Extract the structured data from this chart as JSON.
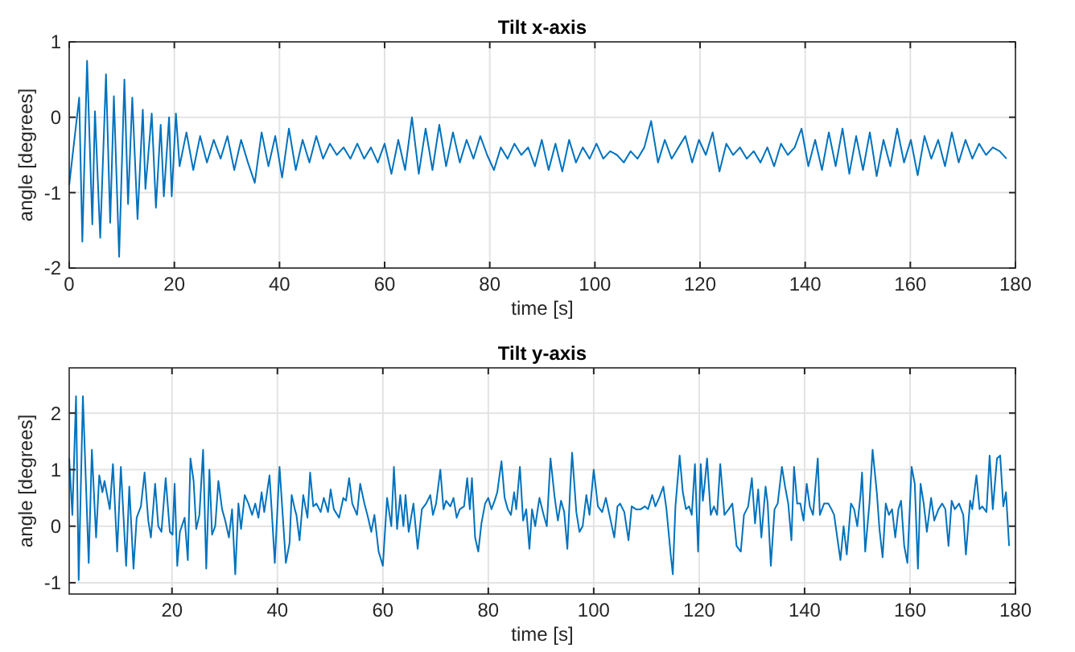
{
  "chart_data": [
    {
      "type": "line",
      "title": "Tilt x-axis",
      "xlabel": "time [s]",
      "ylabel": "angle [degrees]",
      "xlim": [
        0,
        180
      ],
      "ylim": [
        -2,
        1
      ],
      "xticks": [
        0,
        20,
        40,
        60,
        80,
        100,
        120,
        140,
        160,
        180
      ],
      "yticks": [
        -2,
        -1,
        0,
        1
      ],
      "grid": true,
      "x": [
        0,
        1.9,
        2.5,
        3.4,
        4.4,
        4.9,
        5.9,
        7.0,
        7.8,
        8.5,
        9.5,
        10.5,
        11.2,
        12.0,
        13.0,
        14.0,
        14.5,
        15.7,
        16.5,
        17.4,
        18.0,
        19.0,
        19.5,
        20.3,
        21,
        22.3,
        23.6,
        24.9,
        26.2,
        27.5,
        28.8,
        30.1,
        31.4,
        32.7,
        34,
        35.3,
        36.6,
        37.9,
        39.2,
        40.5,
        41.8,
        43.1,
        44.4,
        45.7,
        47,
        48.3,
        49.6,
        50.9,
        52.2,
        53.5,
        54.8,
        56.1,
        57.4,
        58.7,
        60,
        61.3,
        62.6,
        63.9,
        65.2,
        66.5,
        67.8,
        69.1,
        70.4,
        71.7,
        73,
        74.3,
        75.6,
        76.9,
        78.2,
        79.5,
        80.8,
        82.1,
        83.4,
        84.7,
        86,
        87.3,
        88.6,
        89.9,
        91.2,
        92.5,
        93.8,
        95.1,
        96.4,
        97.7,
        99,
        100.3,
        101.6,
        102.9,
        104.2,
        105.5,
        106.8,
        108.1,
        109.4,
        110.7,
        112,
        113.3,
        114.6,
        115.9,
        117.2,
        118.5,
        119.8,
        121.1,
        122.4,
        123.7,
        125,
        126.3,
        127.6,
        128.9,
        130.2,
        131.5,
        132.8,
        134.1,
        135.4,
        136.7,
        138,
        139.3,
        140.6,
        141.9,
        143.2,
        144.5,
        145.8,
        147.1,
        148.4,
        149.7,
        151,
        152.3,
        153.6,
        154.9,
        156.2,
        157.5,
        158.8,
        160.1,
        161.4,
        162.7,
        164,
        165.3,
        166.6,
        167.9,
        169.2,
        170.5,
        171.8,
        173.1,
        174.4,
        175.7,
        177,
        178.3
      ],
      "series": [
        {
          "color": "#0072bd",
          "values": [
            -0.9,
            0.26,
            -1.65,
            0.75,
            -1.42,
            0.08,
            -1.6,
            0.57,
            -1.4,
            0.28,
            -1.85,
            0.5,
            -1.15,
            0.26,
            -1.35,
            0.1,
            -0.95,
            0.05,
            -1.2,
            -0.1,
            -1.05,
            0,
            -1.05,
            0.05,
            -0.65,
            -0.2,
            -0.7,
            -0.25,
            -0.6,
            -0.3,
            -0.55,
            -0.25,
            -0.7,
            -0.3,
            -0.6,
            -0.87,
            -0.2,
            -0.65,
            -0.25,
            -0.8,
            -0.15,
            -0.7,
            -0.3,
            -0.6,
            -0.25,
            -0.55,
            -0.35,
            -0.5,
            -0.4,
            -0.55,
            -0.35,
            -0.55,
            -0.4,
            -0.6,
            -0.35,
            -0.75,
            -0.3,
            -0.7,
            0.0,
            -0.75,
            -0.15,
            -0.7,
            -0.1,
            -0.65,
            -0.2,
            -0.6,
            -0.3,
            -0.55,
            -0.25,
            -0.5,
            -0.7,
            -0.4,
            -0.55,
            -0.35,
            -0.5,
            -0.4,
            -0.65,
            -0.3,
            -0.7,
            -0.35,
            -0.72,
            -0.3,
            -0.6,
            -0.4,
            -0.55,
            -0.35,
            -0.55,
            -0.45,
            -0.5,
            -0.6,
            -0.45,
            -0.55,
            -0.4,
            -0.05,
            -0.6,
            -0.3,
            -0.55,
            -0.4,
            -0.25,
            -0.6,
            -0.3,
            -0.5,
            -0.2,
            -0.72,
            -0.35,
            -0.5,
            -0.4,
            -0.55,
            -0.45,
            -0.6,
            -0.4,
            -0.65,
            -0.35,
            -0.5,
            -0.4,
            -0.15,
            -0.65,
            -0.3,
            -0.7,
            -0.2,
            -0.65,
            -0.15,
            -0.75,
            -0.25,
            -0.7,
            -0.2,
            -0.78,
            -0.3,
            -0.65,
            -0.15,
            -0.6,
            -0.3,
            -0.77,
            -0.25,
            -0.55,
            -0.3,
            -0.65,
            -0.2,
            -0.6,
            -0.3,
            -0.55,
            -0.35,
            -0.5,
            -0.4,
            -0.45,
            -0.55
          ]
        }
      ]
    },
    {
      "type": "line",
      "title": "Tilt y-axis",
      "xlabel": "time [s]",
      "ylabel": "angle [degrees]",
      "xlim": [
        0.5,
        180
      ],
      "ylim": [
        -1.2,
        2.8
      ],
      "xticks": [
        20,
        40,
        60,
        80,
        100,
        120,
        140,
        160,
        180
      ],
      "yticks": [
        -1,
        0,
        1,
        2
      ],
      "grid": true,
      "x": [
        0.5,
        1.1,
        1.8,
        2.3,
        3.1,
        4.2,
        4.8,
        5.6,
        6.2,
        6.8,
        7.2,
        8.2,
        8.8,
        9.6,
        10.3,
        11.3,
        11.9,
        12.7,
        13.3,
        14.1,
        14.8,
        15.5,
        16,
        16.8,
        17.4,
        18,
        18.8,
        19.6,
        20.1,
        20.5,
        21,
        21.5,
        22.4,
        23,
        23.5,
        24.1,
        24.6,
        25.2,
        25.9,
        26.5,
        27.1,
        27.6,
        28.2,
        28.8,
        29.5,
        30.1,
        30.8,
        31.4,
        32,
        32.6,
        33.1,
        33.8,
        34.5,
        35.2,
        35.8,
        36.4,
        37,
        37.5,
        38.5,
        38.9,
        39.5,
        40.4,
        41.6,
        42.3,
        42.7,
        43.3,
        43.6,
        44.2,
        44.9,
        45.7,
        46.2,
        46.8,
        47.4,
        48.2,
        48.8,
        49.6,
        50.1,
        50.7,
        51.7,
        52.5,
        53,
        53.6,
        54.2,
        55.1,
        55.7,
        56.5,
        57.2,
        57.8,
        58.4,
        59.2,
        60,
        60.8,
        61.6,
        62.1,
        62.7,
        63.3,
        63.9,
        64.3,
        64.9,
        65.8,
        66.6,
        67.4,
        68.2,
        69,
        69.5,
        70.1,
        70.9,
        71.5,
        72,
        72.8,
        73.4,
        74,
        74.6,
        75.4,
        76,
        76.5,
        76.9,
        77.5,
        78.1,
        78.7,
        79.4,
        80,
        80.6,
        81.2,
        81.7,
        82.5,
        83.1,
        83.7,
        84.3,
        84.9,
        85.3,
        86,
        86.6,
        87.2,
        87.8,
        88.3,
        88.9,
        89.7,
        90.5,
        91.1,
        91.8,
        92.6,
        93.2,
        93.8,
        94.4,
        95,
        95.5,
        95.9,
        96.7,
        97.3,
        97.9,
        98.6,
        99.2,
        100,
        100.8,
        101.6,
        102.3,
        103.1,
        103.9,
        104.5,
        105,
        105.8,
        106.6,
        107.2,
        108,
        108.9,
        109.7,
        110.3,
        111.1,
        111.7,
        112.4,
        113.2,
        113.8,
        114.6,
        115,
        115.5,
        116.3,
        116.9,
        117.5,
        118.1,
        118.6,
        119.2,
        119.8,
        120.3,
        120.7,
        121,
        121.5,
        122.2,
        122.8,
        123.4,
        124,
        124.8,
        125.6,
        126.3,
        127.1,
        127.9,
        128.5,
        129.3,
        130,
        130.6,
        131.2,
        131.8,
        132.6,
        133,
        133.6,
        134.3,
        134.9,
        135.7,
        136.3,
        136.9,
        137.5,
        138,
        138.6,
        139.2,
        139.8,
        140.4,
        141,
        141.6,
        142.5,
        142.9,
        143.7,
        144.5,
        145.1,
        145.6,
        146.2,
        146.8,
        147.4,
        148,
        148.8,
        149.4,
        150,
        150.6,
        150.9,
        151.5,
        152.3,
        152.9,
        153.7,
        154.2,
        154.8,
        155.4,
        156,
        156.6,
        157.2,
        157.8,
        158.3,
        158.9,
        159.5,
        160.3,
        160.9,
        161.5,
        162,
        162.6,
        163.2,
        164,
        164.6,
        165.4,
        166.1,
        166.7,
        167.3,
        167.9,
        168.5,
        169.3,
        170.1,
        170.6,
        171.4,
        171.8,
        172.6,
        173.2,
        173.7,
        174.5,
        175.1,
        175.7,
        176.5,
        177.1,
        177.7,
        178.2,
        178.8
      ],
      "series": [
        {
          "color": "#0072bd",
          "values": [
            1.2,
            0.2,
            2.3,
            -0.95,
            2.3,
            -0.65,
            1.35,
            -0.2,
            0.9,
            0.6,
            0.8,
            0.3,
            1.1,
            -0.45,
            1.05,
            -0.7,
            0.7,
            -0.75,
            0.15,
            0.35,
            0.95,
            0.1,
            -0.2,
            0.75,
            0,
            -0.1,
            0.85,
            -0.1,
            -0.15,
            0.75,
            -0.7,
            -0.1,
            0.15,
            -0.6,
            1.2,
            0.8,
            -0.05,
            0.2,
            1.35,
            -0.75,
            1.0,
            -0.15,
            0.0,
            0.8,
            0.3,
            0.1,
            -0.2,
            0.3,
            -0.85,
            0.4,
            -0.05,
            0.55,
            0.4,
            0.2,
            0.4,
            0.15,
            0.6,
            0.25,
            0.9,
            0.3,
            -0.65,
            1.05,
            -0.65,
            -0.3,
            0.55,
            0.3,
            0.2,
            -0.25,
            0.55,
            0.15,
            0.95,
            0.35,
            0.4,
            0.25,
            0.5,
            0.25,
            0.65,
            0.3,
            0.15,
            0.5,
            0.45,
            0.85,
            0.4,
            0.2,
            0.75,
            0.4,
            0.15,
            -0.1,
            0.2,
            -0.45,
            -0.7,
            0.5,
            0.0,
            1.05,
            -0.05,
            0.55,
            0.0,
            0.55,
            -0.1,
            0.4,
            -0.4,
            0.3,
            0.4,
            0.55,
            0.2,
            0.4,
            1.0,
            0.3,
            0.45,
            0.35,
            0.5,
            0.15,
            0.3,
            0.35,
            0.85,
            0.3,
            0.85,
            -0.2,
            -0.45,
            0.05,
            0.4,
            0.5,
            0.3,
            0.45,
            0.6,
            1.15,
            0.5,
            0.3,
            0.2,
            0.6,
            0.3,
            1.05,
            0.1,
            0.3,
            -0.4,
            0.3,
            0.0,
            0.5,
            0.2,
            0.0,
            1.2,
            0.5,
            0.1,
            0.45,
            0.25,
            -0.4,
            0.6,
            1.3,
            0.25,
            -0.1,
            0.0,
            0.55,
            0.2,
            1.0,
            0.35,
            0.25,
            0.5,
            0.15,
            -0.2,
            0.35,
            0.4,
            0.25,
            -0.25,
            0.35,
            0.3,
            0.3,
            0.35,
            0.3,
            0.55,
            0.35,
            0.5,
            0.7,
            0.3,
            -0.5,
            -0.85,
            0.35,
            1.25,
            0.6,
            0.3,
            0.35,
            0.2,
            1.1,
            -0.45,
            1.1,
            0.45,
            0.7,
            1.2,
            0.2,
            0.35,
            0.2,
            1.1,
            0.2,
            0.3,
            0.4,
            -0.35,
            -0.45,
            0.2,
            0.35,
            0.85,
            0.05,
            0.65,
            -0.2,
            0.7,
            0.4,
            -0.7,
            0.3,
            0.4,
            1.05,
            0.7,
            0.4,
            -0.25,
            1.05,
            0.4,
            0.4,
            0.1,
            0.75,
            0.35,
            0.2,
            1.2,
            0.2,
            0.4,
            0.4,
            0.3,
            0.2,
            -0.2,
            -0.6,
            0.0,
            -0.5,
            0.4,
            0.3,
            0.0,
            0.55,
            0.95,
            -0.45,
            0.4,
            1.35,
            0.6,
            -0.05,
            -0.55,
            0.4,
            0.2,
            0.3,
            -0.2,
            0.3,
            0.45,
            -0.35,
            -0.65,
            1.05,
            0.75,
            -0.75,
            0.75,
            0.4,
            -0.1,
            0.5,
            0.1,
            0.3,
            0.4,
            0.3,
            -0.35,
            0.45,
            0.3,
            0.4,
            0.2,
            -0.5,
            0.45,
            0.3,
            0.9,
            0.3,
            0.35,
            0.25,
            1.25,
            0.3,
            1.2,
            1.25,
            0.35,
            0.6,
            -0.35
          ]
        }
      ]
    }
  ]
}
